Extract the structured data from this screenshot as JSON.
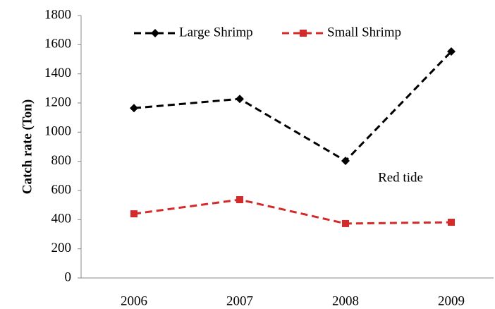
{
  "chart_data": {
    "type": "line",
    "y_label": "Catch rate (Ton)",
    "categories": [
      "2006",
      "2007",
      "2008",
      "2009"
    ],
    "series": [
      {
        "name": "Large Shrimp",
        "color": "#000000",
        "marker": "diamond",
        "values": [
          1165,
          1228,
          803,
          1553
        ]
      },
      {
        "name": "Small Shrimp",
        "color": "#d42a2a",
        "marker": "square",
        "values": [
          440,
          537,
          373,
          382
        ]
      }
    ],
    "ylim": [
      0,
      1800
    ],
    "yticks": [
      0,
      200,
      400,
      600,
      800,
      1000,
      1200,
      1400,
      1600,
      1800
    ],
    "annotation": "Red tide",
    "grid": false
  }
}
